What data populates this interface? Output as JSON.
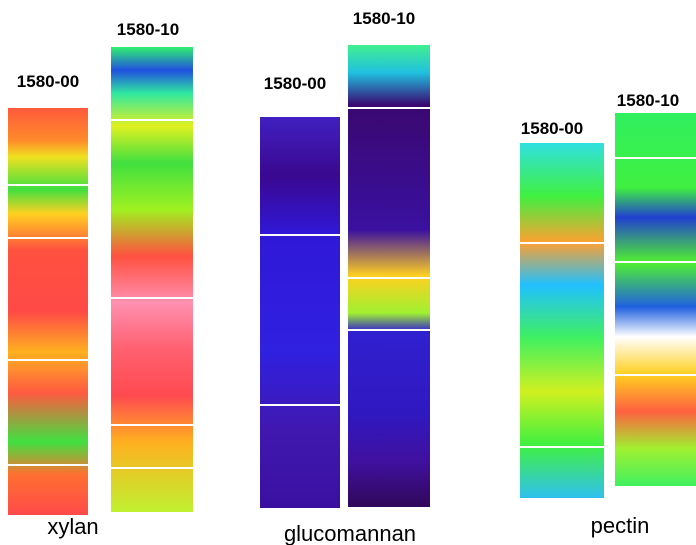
{
  "panels": [
    {
      "name": "xylan",
      "samples": [
        "1580-00",
        "1580-10"
      ]
    },
    {
      "name": "glucomannan",
      "samples": [
        "1580-00",
        "1580-10"
      ]
    },
    {
      "name": "pectin",
      "samples": [
        "1580-00",
        "1580-10"
      ]
    }
  ]
}
